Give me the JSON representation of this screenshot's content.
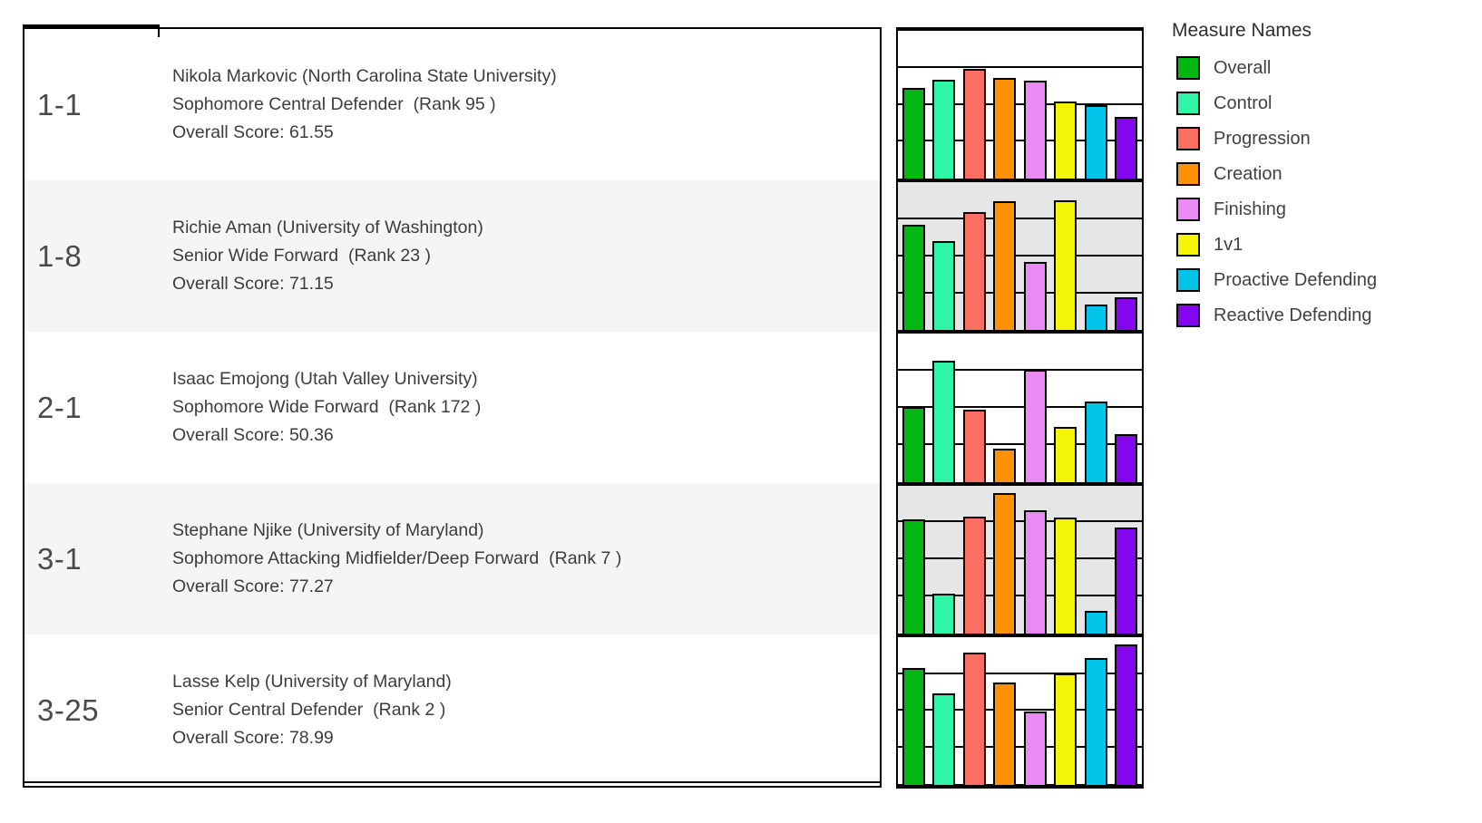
{
  "table": {
    "rows": [
      {
        "code": "1-1",
        "name": "Nikola Markovic (North Carolina State University)",
        "position": "Sophomore Central Defender  (Rank 95 )",
        "score": "Overall Score: 61.55"
      },
      {
        "code": "1-8",
        "name": "Richie Aman (University of Washington)",
        "position": "Senior Wide Forward  (Rank 23 )",
        "score": "Overall Score: 71.15"
      },
      {
        "code": "2-1",
        "name": "Isaac Emojong (Utah Valley University)",
        "position": "Sophomore Wide Forward  (Rank 172 )",
        "score": "Overall Score: 50.36"
      },
      {
        "code": "3-1",
        "name": "Stephane Njike (University of Maryland)",
        "position": "Sophomore Attacking Midfielder/Deep Forward  (Rank 7 )",
        "score": "Overall Score: 77.27"
      },
      {
        "code": "3-25",
        "name": "Lasse Kelp (University of Maryland)",
        "position": "Senior Central Defender  (Rank 2 )",
        "score": "Overall Score: 78.99"
      }
    ]
  },
  "legend": {
    "title": "Measure Names",
    "items": [
      {
        "label": "Overall",
        "color": "#00b80f"
      },
      {
        "label": "Control",
        "color": "#30f5a6"
      },
      {
        "label": "Progression",
        "color": "#fb6f62"
      },
      {
        "label": "Creation",
        "color": "#ff9104"
      },
      {
        "label": "Finishing",
        "color": "#e98bf2"
      },
      {
        "label": "1v1",
        "color": "#f4f506"
      },
      {
        "label": "Proactive Defending",
        "color": "#00c4e8"
      },
      {
        "label": "Reactive Defending",
        "color": "#8405f0"
      }
    ]
  },
  "chart_data": {
    "type": "bar",
    "categories": [
      "Overall",
      "Control",
      "Progression",
      "Creation",
      "Finishing",
      "1v1",
      "Proactive Defending",
      "Reactive Defending"
    ],
    "ylim": [
      0,
      100
    ],
    "gridlines": [
      25,
      50,
      75
    ],
    "grid": true,
    "legend_position": "right",
    "panels": [
      {
        "row": "1-1",
        "player": "Nikola Markovic",
        "values": [
          61.55,
          67.0,
          74.5,
          68.0,
          66.5,
          52.5,
          50.0,
          41.5
        ]
      },
      {
        "row": "1-8",
        "player": "Richie Aman",
        "values": [
          71.15,
          60.5,
          80.0,
          87.0,
          46.0,
          88.0,
          17.5,
          22.0
        ]
      },
      {
        "row": "2-1",
        "player": "Isaac Emojong",
        "values": [
          50.36,
          82.0,
          48.5,
          22.5,
          75.5,
          37.0,
          54.0,
          32.0
        ]
      },
      {
        "row": "3-1",
        "player": "Stephane Njike",
        "values": [
          77.27,
          27.0,
          79.0,
          95.0,
          83.5,
          78.5,
          15.0,
          71.5
        ]
      },
      {
        "row": "3-25",
        "player": "Lasse Kelp",
        "values": [
          78.99,
          62.0,
          89.5,
          69.0,
          49.5,
          75.5,
          85.5,
          95.0
        ]
      }
    ]
  }
}
